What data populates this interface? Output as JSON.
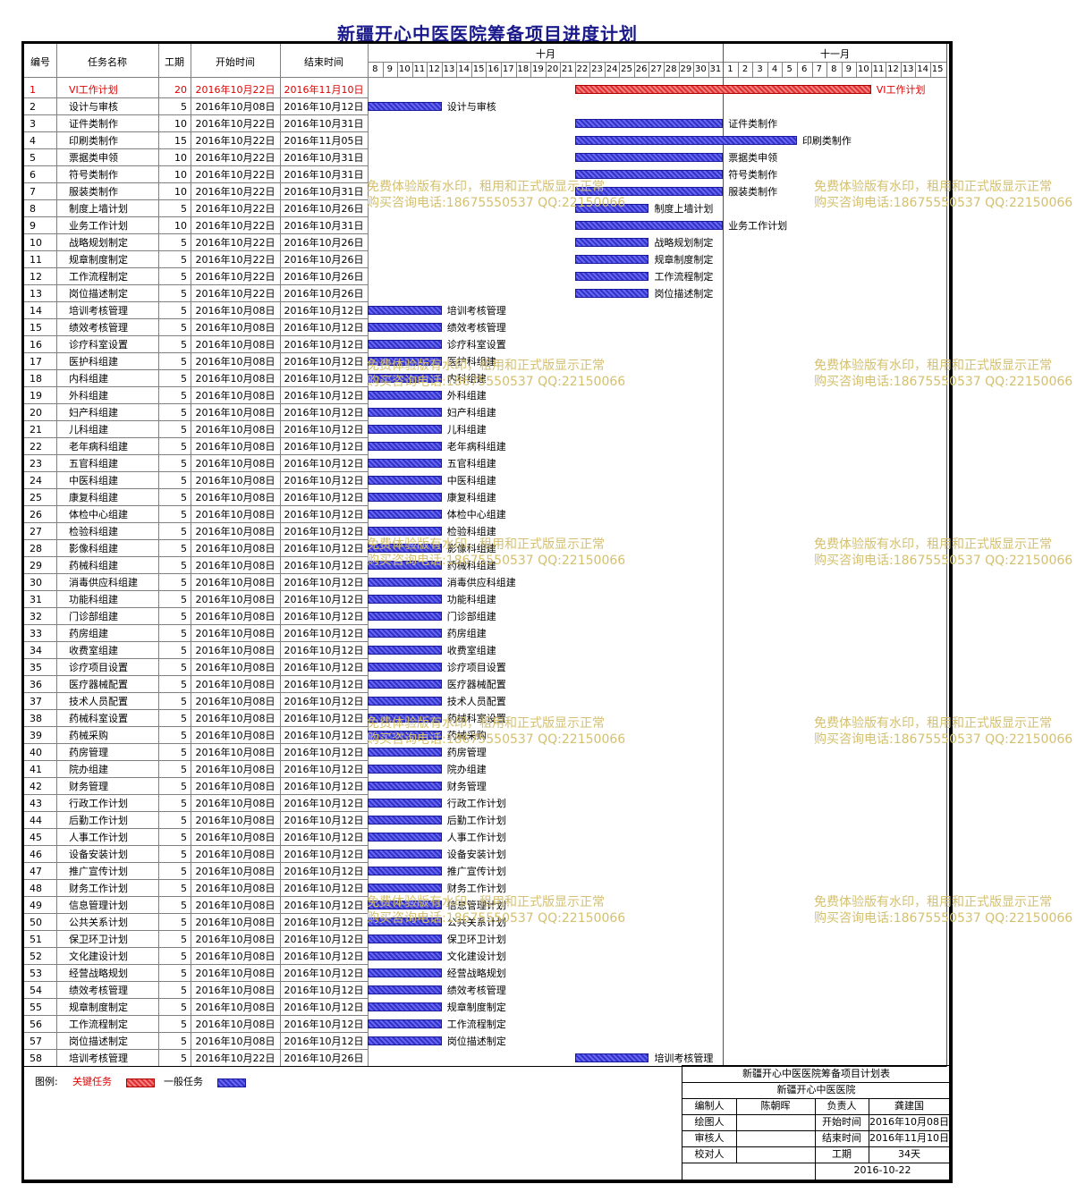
{
  "title": "新疆开心中医医院筹备项目进度计划",
  "columns": {
    "num": "编号",
    "name": "任务名称",
    "dur": "工期",
    "start": "开始时间",
    "end": "结束时间"
  },
  "months": [
    "十月",
    "十一月"
  ],
  "oct_days": [
    "8",
    "9",
    "10",
    "11",
    "12",
    "13",
    "14",
    "15",
    "16",
    "17",
    "18",
    "19",
    "20",
    "21",
    "22",
    "23",
    "24",
    "25",
    "26",
    "27",
    "28",
    "29",
    "30",
    "31"
  ],
  "nov_days": [
    "1",
    "2",
    "3",
    "4",
    "5",
    "6",
    "7",
    "8",
    "9",
    "10",
    "11",
    "12",
    "13",
    "14",
    "15"
  ],
  "tasks": [
    {
      "num": "1",
      "name": "VI工作计划",
      "dur": "20",
      "start": "2016年10月22日",
      "end": "2016年11月10日",
      "critical": true
    },
    {
      "num": "2",
      "name": "设计与审核",
      "dur": "5",
      "start": "2016年10月08日",
      "end": "2016年10月12日"
    },
    {
      "num": "3",
      "name": "证件类制作",
      "dur": "10",
      "start": "2016年10月22日",
      "end": "2016年10月31日"
    },
    {
      "num": "4",
      "name": "印刷类制作",
      "dur": "15",
      "start": "2016年10月22日",
      "end": "2016年11月05日"
    },
    {
      "num": "5",
      "name": "票据类申领",
      "dur": "10",
      "start": "2016年10月22日",
      "end": "2016年10月31日"
    },
    {
      "num": "6",
      "name": "符号类制作",
      "dur": "10",
      "start": "2016年10月22日",
      "end": "2016年10月31日"
    },
    {
      "num": "7",
      "name": "服装类制作",
      "dur": "10",
      "start": "2016年10月22日",
      "end": "2016年10月31日"
    },
    {
      "num": "8",
      "name": "制度上墙计划",
      "dur": "5",
      "start": "2016年10月22日",
      "end": "2016年10月26日"
    },
    {
      "num": "9",
      "name": "业务工作计划",
      "dur": "10",
      "start": "2016年10月22日",
      "end": "2016年10月31日"
    },
    {
      "num": "10",
      "name": "战略规划制定",
      "dur": "5",
      "start": "2016年10月22日",
      "end": "2016年10月26日"
    },
    {
      "num": "11",
      "name": "规章制度制定",
      "dur": "5",
      "start": "2016年10月22日",
      "end": "2016年10月26日"
    },
    {
      "num": "12",
      "name": "工作流程制定",
      "dur": "5",
      "start": "2016年10月22日",
      "end": "2016年10月26日"
    },
    {
      "num": "13",
      "name": "岗位描述制定",
      "dur": "5",
      "start": "2016年10月22日",
      "end": "2016年10月26日"
    },
    {
      "num": "14",
      "name": "培训考核管理",
      "dur": "5",
      "start": "2016年10月08日",
      "end": "2016年10月12日"
    },
    {
      "num": "15",
      "name": "绩效考核管理",
      "dur": "5",
      "start": "2016年10月08日",
      "end": "2016年10月12日"
    },
    {
      "num": "16",
      "name": "诊疗科室设置",
      "dur": "5",
      "start": "2016年10月08日",
      "end": "2016年10月12日"
    },
    {
      "num": "17",
      "name": "医护科组建",
      "dur": "5",
      "start": "2016年10月08日",
      "end": "2016年10月12日"
    },
    {
      "num": "18",
      "name": "内科组建",
      "dur": "5",
      "start": "2016年10月08日",
      "end": "2016年10月12日"
    },
    {
      "num": "19",
      "name": "外科组建",
      "dur": "5",
      "start": "2016年10月08日",
      "end": "2016年10月12日"
    },
    {
      "num": "20",
      "name": "妇产科组建",
      "dur": "5",
      "start": "2016年10月08日",
      "end": "2016年10月12日"
    },
    {
      "num": "21",
      "name": "儿科组建",
      "dur": "5",
      "start": "2016年10月08日",
      "end": "2016年10月12日"
    },
    {
      "num": "22",
      "name": "老年病科组建",
      "dur": "5",
      "start": "2016年10月08日",
      "end": "2016年10月12日"
    },
    {
      "num": "23",
      "name": "五官科组建",
      "dur": "5",
      "start": "2016年10月08日",
      "end": "2016年10月12日"
    },
    {
      "num": "24",
      "name": "中医科组建",
      "dur": "5",
      "start": "2016年10月08日",
      "end": "2016年10月12日"
    },
    {
      "num": "25",
      "name": "康复科组建",
      "dur": "5",
      "start": "2016年10月08日",
      "end": "2016年10月12日"
    },
    {
      "num": "26",
      "name": "体检中心组建",
      "dur": "5",
      "start": "2016年10月08日",
      "end": "2016年10月12日"
    },
    {
      "num": "27",
      "name": "检验科组建",
      "dur": "5",
      "start": "2016年10月08日",
      "end": "2016年10月12日"
    },
    {
      "num": "28",
      "name": "影像科组建",
      "dur": "5",
      "start": "2016年10月08日",
      "end": "2016年10月12日"
    },
    {
      "num": "29",
      "name": "药械科组建",
      "dur": "5",
      "start": "2016年10月08日",
      "end": "2016年10月12日"
    },
    {
      "num": "30",
      "name": "消毒供应科组建",
      "dur": "5",
      "start": "2016年10月08日",
      "end": "2016年10月12日"
    },
    {
      "num": "31",
      "name": "功能科组建",
      "dur": "5",
      "start": "2016年10月08日",
      "end": "2016年10月12日"
    },
    {
      "num": "32",
      "name": "门诊部组建",
      "dur": "5",
      "start": "2016年10月08日",
      "end": "2016年10月12日"
    },
    {
      "num": "33",
      "name": "药房组建",
      "dur": "5",
      "start": "2016年10月08日",
      "end": "2016年10月12日"
    },
    {
      "num": "34",
      "name": "收费室组建",
      "dur": "5",
      "start": "2016年10月08日",
      "end": "2016年10月12日"
    },
    {
      "num": "35",
      "name": "诊疗项目设置",
      "dur": "5",
      "start": "2016年10月08日",
      "end": "2016年10月12日"
    },
    {
      "num": "36",
      "name": "医疗器械配置",
      "dur": "5",
      "start": "2016年10月08日",
      "end": "2016年10月12日"
    },
    {
      "num": "37",
      "name": "技术人员配置",
      "dur": "5",
      "start": "2016年10月08日",
      "end": "2016年10月12日"
    },
    {
      "num": "38",
      "name": "药械科室设置",
      "dur": "5",
      "start": "2016年10月08日",
      "end": "2016年10月12日"
    },
    {
      "num": "39",
      "name": "药械采购",
      "dur": "5",
      "start": "2016年10月08日",
      "end": "2016年10月12日"
    },
    {
      "num": "40",
      "name": "药房管理",
      "dur": "5",
      "start": "2016年10月08日",
      "end": "2016年10月12日"
    },
    {
      "num": "41",
      "name": "院办组建",
      "dur": "5",
      "start": "2016年10月08日",
      "end": "2016年10月12日"
    },
    {
      "num": "42",
      "name": "财务管理",
      "dur": "5",
      "start": "2016年10月08日",
      "end": "2016年10月12日"
    },
    {
      "num": "43",
      "name": "行政工作计划",
      "dur": "5",
      "start": "2016年10月08日",
      "end": "2016年10月12日"
    },
    {
      "num": "44",
      "name": "后勤工作计划",
      "dur": "5",
      "start": "2016年10月08日",
      "end": "2016年10月12日"
    },
    {
      "num": "45",
      "name": "人事工作计划",
      "dur": "5",
      "start": "2016年10月08日",
      "end": "2016年10月12日"
    },
    {
      "num": "46",
      "name": "设备安装计划",
      "dur": "5",
      "start": "2016年10月08日",
      "end": "2016年10月12日"
    },
    {
      "num": "47",
      "name": "推广宣传计划",
      "dur": "5",
      "start": "2016年10月08日",
      "end": "2016年10月12日"
    },
    {
      "num": "48",
      "name": "财务工作计划",
      "dur": "5",
      "start": "2016年10月08日",
      "end": "2016年10月12日"
    },
    {
      "num": "49",
      "name": "信息管理计划",
      "dur": "5",
      "start": "2016年10月08日",
      "end": "2016年10月12日"
    },
    {
      "num": "50",
      "name": "公共关系计划",
      "dur": "5",
      "start": "2016年10月08日",
      "end": "2016年10月12日"
    },
    {
      "num": "51",
      "name": "保卫环卫计划",
      "dur": "5",
      "start": "2016年10月08日",
      "end": "2016年10月12日"
    },
    {
      "num": "52",
      "name": "文化建设计划",
      "dur": "5",
      "start": "2016年10月08日",
      "end": "2016年10月12日"
    },
    {
      "num": "53",
      "name": "经营战略规划",
      "dur": "5",
      "start": "2016年10月08日",
      "end": "2016年10月12日"
    },
    {
      "num": "54",
      "name": "绩效考核管理",
      "dur": "5",
      "start": "2016年10月08日",
      "end": "2016年10月12日"
    },
    {
      "num": "55",
      "name": "规章制度制定",
      "dur": "5",
      "start": "2016年10月08日",
      "end": "2016年10月12日"
    },
    {
      "num": "56",
      "name": "工作流程制定",
      "dur": "5",
      "start": "2016年10月08日",
      "end": "2016年10月12日"
    },
    {
      "num": "57",
      "name": "岗位描述制定",
      "dur": "5",
      "start": "2016年10月08日",
      "end": "2016年10月12日"
    },
    {
      "num": "58",
      "name": "培训考核管理",
      "dur": "5",
      "start": "2016年10月22日",
      "end": "2016年10月26日"
    }
  ],
  "watermark": {
    "line1": "免费体验版有水印，租用和正式版显示正常",
    "line2": "购买咨询电话:18675550537 QQ:22150066"
  },
  "legend": {
    "label": "图例:",
    "critical": "关键任务",
    "normal": "一般任务"
  },
  "info": {
    "table_title": "新疆开心中医医院筹备项目计划表",
    "org": "新疆开心中医医院",
    "compiler_label": "编制人",
    "compiler": "陈朝晖",
    "owner_label": "负责人",
    "owner": "龚建国",
    "drawer_label": "绘图人",
    "start_label": "开始时间",
    "start": "2016年10月08日",
    "reviewer_label": "审核人",
    "end_label": "结束时间",
    "end": "2016年11月10日",
    "checker_label": "校对人",
    "duration_label": "工期",
    "duration": "34天",
    "date": "2016-10-22"
  },
  "colors": {
    "normal_bar": "#3333cc",
    "critical_bar": "#e03030",
    "critical_text": "#e00000",
    "title": "#1a1a8c",
    "watermark": "#d4c070"
  }
}
